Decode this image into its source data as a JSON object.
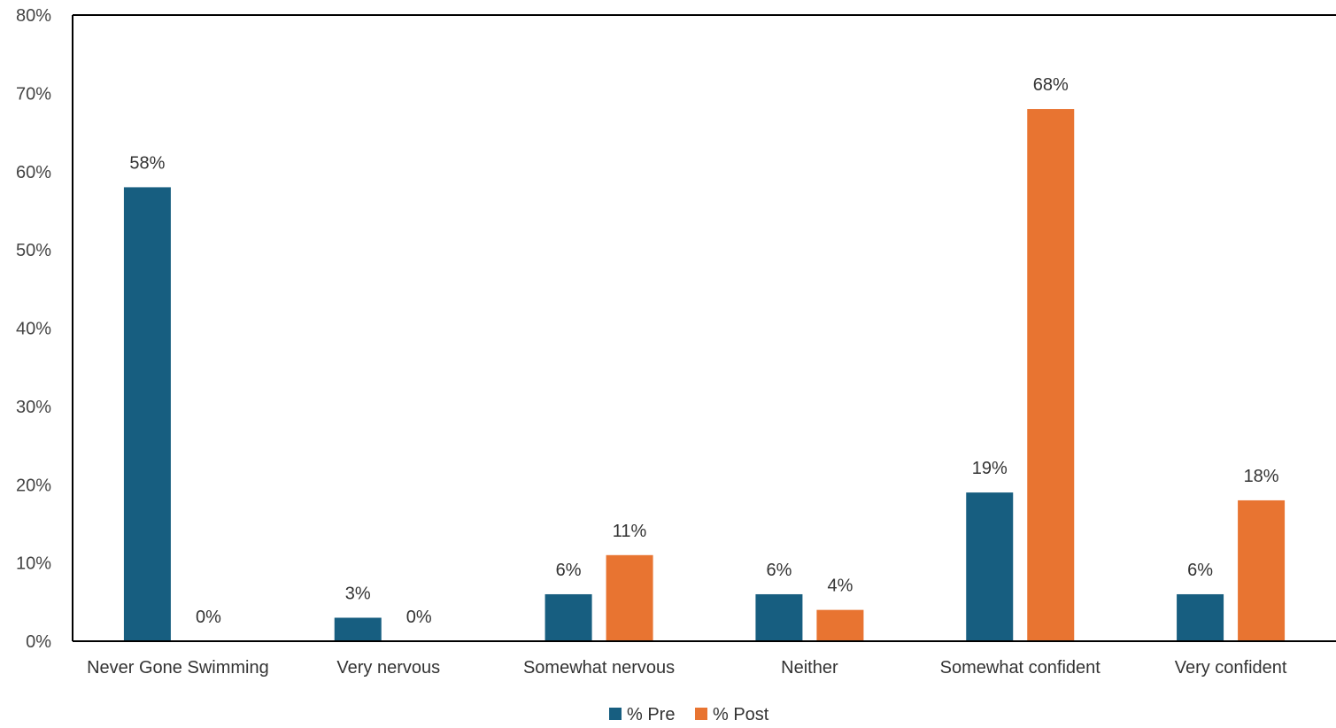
{
  "chart_data": {
    "type": "bar",
    "title": "",
    "xlabel": "",
    "ylabel": "",
    "categories": [
      "Never Gone Swimming",
      "Very nervous",
      "Somewhat nervous",
      "Neither",
      "Somewhat confident",
      "Very confident"
    ],
    "series": [
      {
        "name": "% Pre",
        "color": "#175e80",
        "values": [
          58,
          3,
          6,
          6,
          19,
          6
        ],
        "labels": [
          "58%",
          "3%",
          "6%",
          "6%",
          "19%",
          "6%"
        ]
      },
      {
        "name": "% Post",
        "color": "#e87431",
        "values": [
          0,
          0,
          11,
          4,
          68,
          18
        ],
        "labels": [
          "0%",
          "0%",
          "11%",
          "4%",
          "68%",
          "18%"
        ]
      }
    ],
    "ylim": [
      0,
      80
    ],
    "yticks": [
      0,
      10,
      20,
      30,
      40,
      50,
      60,
      70,
      80
    ],
    "ytick_labels": [
      "0%",
      "10%",
      "20%",
      "30%",
      "40%",
      "50%",
      "60%",
      "70%",
      "80%"
    ],
    "grid": false,
    "legend_position": "bottom"
  }
}
